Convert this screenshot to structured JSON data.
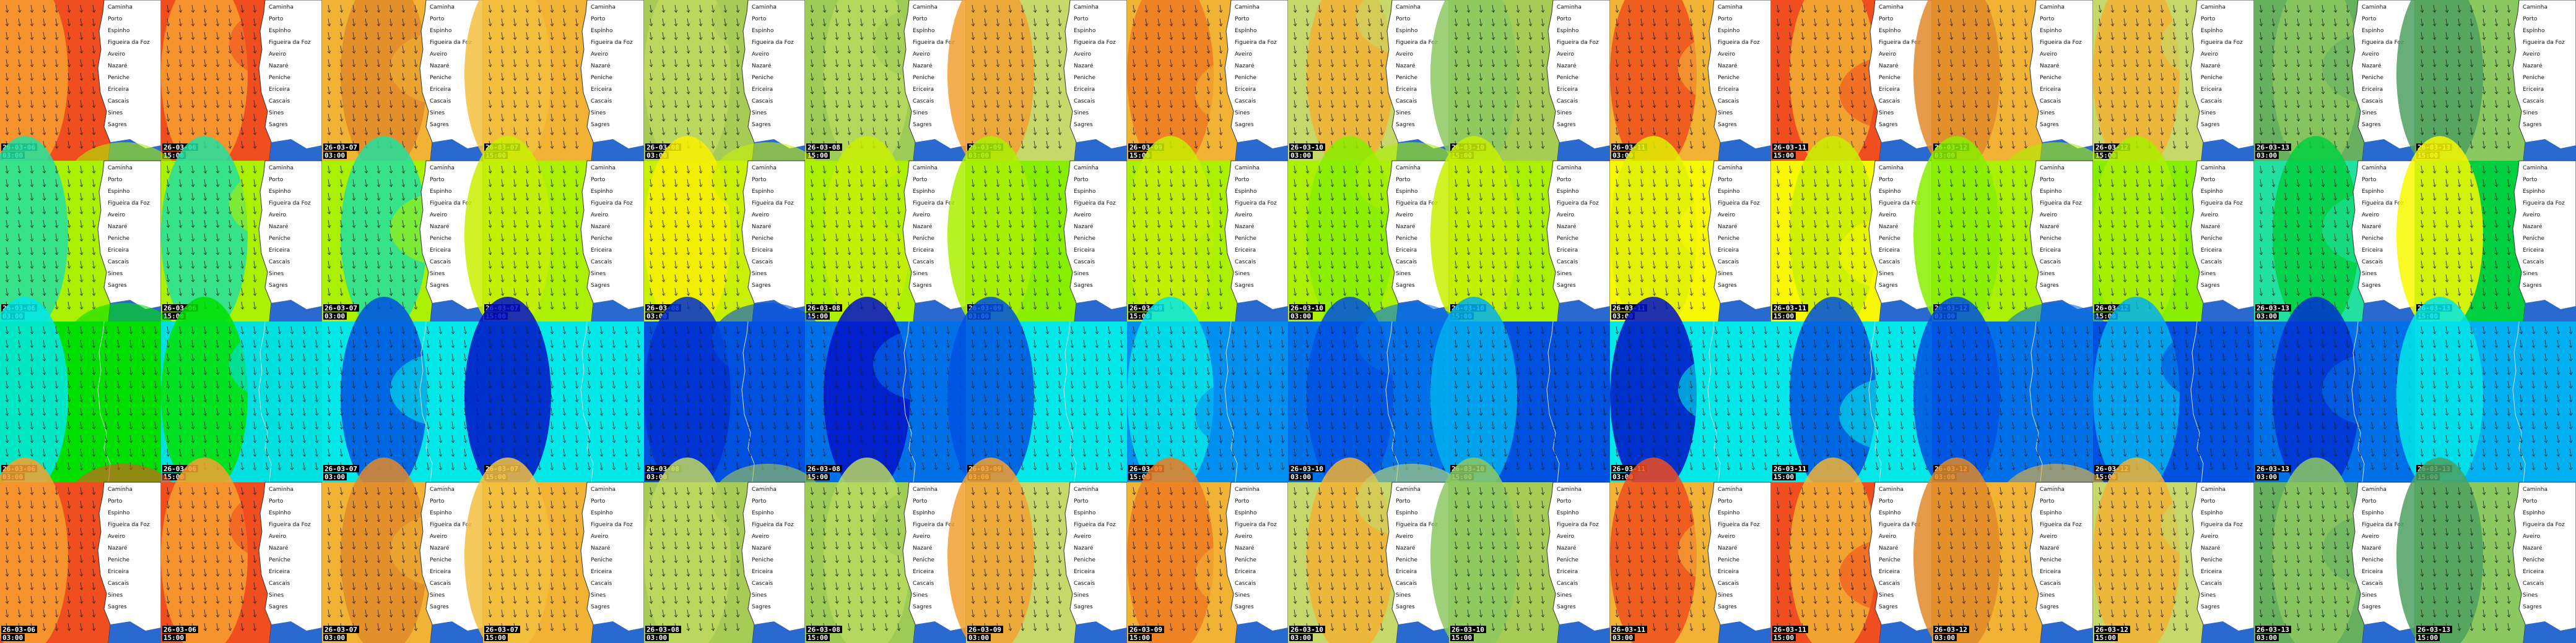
{
  "tiles": [
    {
      "date": "26-03-06",
      "time": "03:00"
    },
    {
      "date": "26-03-06",
      "time": "15:00"
    },
    {
      "date": "26-03-07",
      "time": "03:00"
    },
    {
      "date": "26-03-07",
      "time": "15:00"
    },
    {
      "date": "26-03-08",
      "time": "03:00"
    },
    {
      "date": "26-03-08",
      "time": "15:00"
    },
    {
      "date": "26-03-09",
      "time": "03:00"
    },
    {
      "date": "26-03-09",
      "time": "15:00"
    },
    {
      "date": "26-03-10",
      "time": "03:00"
    },
    {
      "date": "26-03-10",
      "time": "15:00"
    },
    {
      "date": "26-03-11",
      "time": "03:00"
    },
    {
      "date": "26-03-11",
      "time": "15:00"
    },
    {
      "date": "26-03-12",
      "time": "03:00"
    },
    {
      "date": "26-03-12",
      "time": "15:00"
    },
    {
      "date": "26-03-13",
      "time": "03:00"
    },
    {
      "date": "26-03-13",
      "time": "15:00"
    }
  ],
  "places": [
    "Caminha",
    "Porto",
    "Espinho",
    "Figueira da Foz",
    "Aveiro",
    "Nazaré",
    "Peniche",
    "Ericeira",
    "Cascais",
    "Sines",
    "Sagres"
  ]
}
